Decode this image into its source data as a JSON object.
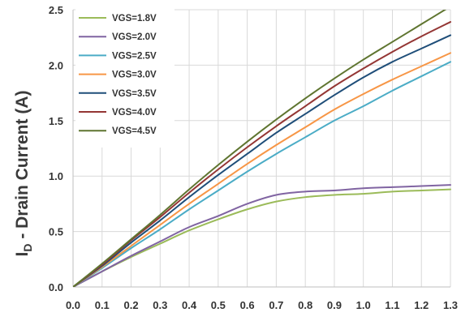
{
  "chart_data": {
    "type": "line",
    "title": "",
    "xlabel": "",
    "ylabel_main": "I",
    "ylabel_sub": "D",
    "ylabel_rest": " - Drain Current (A)",
    "xlim": [
      0.0,
      1.3
    ],
    "ylim": [
      0.0,
      2.5
    ],
    "x_ticks": [
      "0.0",
      "0.1",
      "0.2",
      "0.3",
      "0.4",
      "0.5",
      "0.6",
      "0.7",
      "0.8",
      "0.9",
      "1.0",
      "1.1",
      "1.2",
      "1.3"
    ],
    "y_ticks": [
      "0.0",
      "0.5",
      "1.0",
      "1.5",
      "2.0",
      "2.5"
    ],
    "grid": true,
    "legend_position": "top-left",
    "x": [
      0.0,
      0.1,
      0.2,
      0.3,
      0.4,
      0.5,
      0.6,
      0.7,
      0.8,
      0.9,
      1.0,
      1.1,
      1.2,
      1.3
    ],
    "series": [
      {
        "name": "VGS=1.8V",
        "color": "#9bbb59",
        "values": [
          0.0,
          0.14,
          0.27,
          0.39,
          0.51,
          0.61,
          0.7,
          0.77,
          0.81,
          0.83,
          0.84,
          0.86,
          0.87,
          0.88
        ]
      },
      {
        "name": "VGS=2.0V",
        "color": "#8064a2",
        "values": [
          0.0,
          0.14,
          0.28,
          0.41,
          0.54,
          0.64,
          0.75,
          0.83,
          0.86,
          0.87,
          0.89,
          0.9,
          0.91,
          0.92
        ]
      },
      {
        "name": "VGS=2.5V",
        "color": "#4bacc6",
        "values": [
          0.0,
          0.17,
          0.35,
          0.52,
          0.7,
          0.87,
          1.04,
          1.2,
          1.35,
          1.5,
          1.63,
          1.77,
          1.9,
          2.03
        ]
      },
      {
        "name": "VGS=3.0V",
        "color": "#f79646",
        "values": [
          0.0,
          0.18,
          0.37,
          0.56,
          0.75,
          0.93,
          1.11,
          1.28,
          1.44,
          1.6,
          1.74,
          1.87,
          1.99,
          2.11
        ]
      },
      {
        "name": "VGS=3.5V",
        "color": "#1f4e79",
        "values": [
          0.0,
          0.19,
          0.4,
          0.6,
          0.81,
          1.01,
          1.2,
          1.39,
          1.56,
          1.73,
          1.89,
          2.03,
          2.15,
          2.27
        ]
      },
      {
        "name": "VGS=4.0V",
        "color": "#943634",
        "values": [
          0.0,
          0.2,
          0.42,
          0.63,
          0.85,
          1.06,
          1.26,
          1.45,
          1.63,
          1.81,
          1.97,
          2.12,
          2.26,
          2.39
        ]
      },
      {
        "name": "VGS=4.5V",
        "color": "#5f7530",
        "values": [
          0.0,
          0.21,
          0.43,
          0.65,
          0.88,
          1.1,
          1.31,
          1.51,
          1.7,
          1.88,
          2.05,
          2.21,
          2.37,
          2.53
        ]
      }
    ]
  }
}
